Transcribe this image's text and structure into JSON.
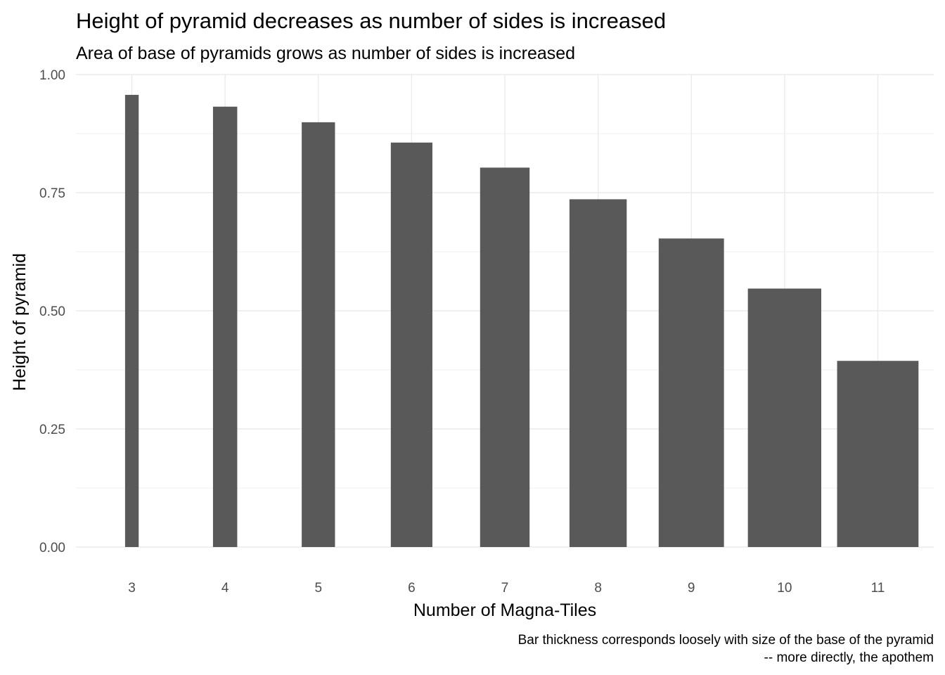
{
  "chart_data": {
    "type": "bar",
    "title": "Height of pyramid decreases as number of sides is increased",
    "subtitle": "Area of base of pyramids grows as number of sides is increased",
    "xlabel": "Number of Magna-Tiles",
    "ylabel": "Height of pyramid",
    "caption_lines": [
      "Bar thickness corresponds loosely with size of the base of the pyramid",
      "-- more directly, the apothem"
    ],
    "categories": [
      "3",
      "4",
      "5",
      "6",
      "7",
      "8",
      "9",
      "10",
      "11"
    ],
    "x": [
      3,
      4,
      5,
      6,
      7,
      8,
      9,
      10,
      11
    ],
    "values": [
      0.957,
      0.932,
      0.899,
      0.856,
      0.803,
      0.736,
      0.653,
      0.547,
      0.394
    ],
    "bar_widths": [
      0.146,
      0.26,
      0.357,
      0.446,
      0.531,
      0.614,
      0.7,
      0.787,
      0.873
    ],
    "ylim": [
      0,
      1.0
    ],
    "xlim": [
      2.4,
      11.6
    ],
    "yticks": [
      0,
      0.25,
      0.5,
      0.75,
      1.0
    ],
    "ytick_labels": [
      "0.00",
      "0.25",
      "0.50",
      "0.75",
      "1.00"
    ],
    "bar_color": "#595959",
    "grid": true,
    "legend": "none"
  }
}
